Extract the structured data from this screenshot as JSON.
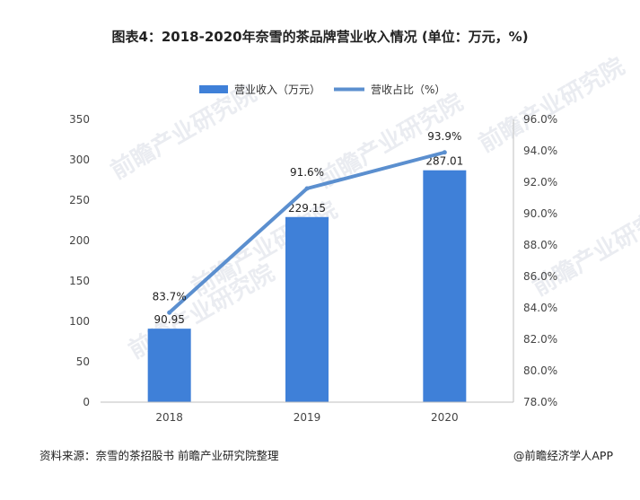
{
  "chart_data": {
    "type": "bar",
    "title": "图表4：2018-2020年奈雪的茶品牌营业收入情况 (单位：万元，%)",
    "categories": [
      "2018",
      "2019",
      "2020"
    ],
    "series": [
      {
        "name": "营业收入（万元）",
        "type": "bar",
        "axis": "left",
        "values": [
          90.95,
          229.15,
          287.01
        ]
      },
      {
        "name": "营收占比（%）",
        "type": "line",
        "axis": "right",
        "values": [
          83.7,
          91.6,
          93.9
        ]
      }
    ],
    "bar_labels": [
      "90.95",
      "229.15",
      "287.01"
    ],
    "line_labels": [
      "83.7%",
      "91.6%",
      "93.9%"
    ],
    "ylim_left": [
      0,
      350
    ],
    "yticks_left": [
      "0",
      "50",
      "100",
      "150",
      "200",
      "250",
      "300",
      "350"
    ],
    "ylim_right": [
      78,
      96
    ],
    "yticks_right": [
      "78.0%",
      "80.0%",
      "82.0%",
      "84.0%",
      "86.0%",
      "88.0%",
      "90.0%",
      "92.0%",
      "94.0%",
      "96.0%"
    ],
    "grid": false,
    "legend_position": "top-center",
    "colors": {
      "bar": "#3f80d8",
      "line": "#5b8fcf"
    }
  },
  "footer": {
    "source": "资料来源：奈雪的茶招股书 前瞻产业研究院整理",
    "brand": "@前瞻经济学人APP"
  },
  "watermark_text": "前瞻产业研究院"
}
